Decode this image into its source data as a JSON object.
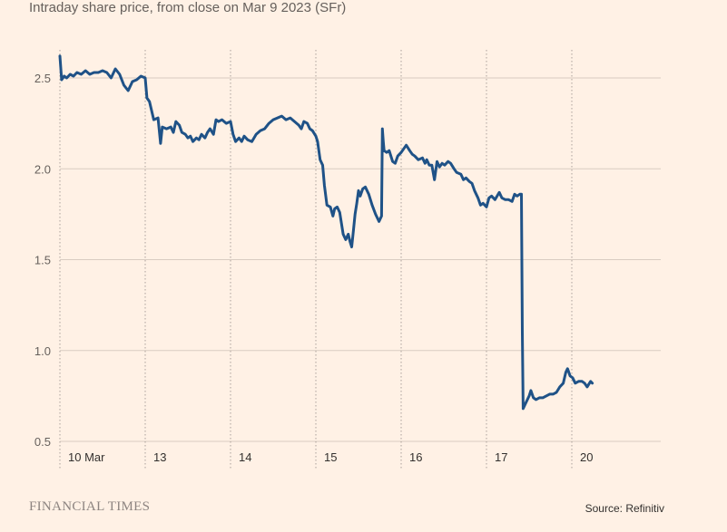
{
  "chart_data": {
    "type": "line",
    "subtitle": "Intraday share price, from close on Mar 9 2023 (SFr)",
    "x_categories": [
      "10 Mar",
      "13",
      "14",
      "15",
      "16",
      "17",
      "20"
    ],
    "ylim": [
      0.5,
      2.7
    ],
    "yticks": [
      0.5,
      1.0,
      1.5,
      2.0,
      2.5
    ],
    "ytick_labels": [
      "0.5",
      "1.0",
      "1.5",
      "2.0",
      "2.5"
    ],
    "grid": true,
    "source": "Source: Refinitiv",
    "brand": "FINANCIAL TIMES",
    "line_color": "#1F5287",
    "grid_color": "#D9CCC1",
    "series": [
      {
        "points": [
          [
            0.0,
            2.62
          ],
          [
            0.02,
            2.49
          ],
          [
            0.05,
            2.51
          ],
          [
            0.08,
            2.5
          ],
          [
            0.12,
            2.52
          ],
          [
            0.16,
            2.51
          ],
          [
            0.2,
            2.53
          ],
          [
            0.25,
            2.52
          ],
          [
            0.3,
            2.54
          ],
          [
            0.35,
            2.52
          ],
          [
            0.4,
            2.53
          ],
          [
            0.45,
            2.53
          ],
          [
            0.5,
            2.54
          ],
          [
            0.55,
            2.53
          ],
          [
            0.6,
            2.5
          ],
          [
            0.65,
            2.55
          ],
          [
            0.7,
            2.52
          ],
          [
            0.75,
            2.46
          ],
          [
            0.8,
            2.43
          ],
          [
            0.85,
            2.48
          ],
          [
            0.9,
            2.49
          ],
          [
            0.95,
            2.51
          ],
          [
            1.0,
            2.5
          ],
          [
            1.02,
            2.39
          ],
          [
            1.05,
            2.37
          ],
          [
            1.1,
            2.27
          ],
          [
            1.15,
            2.28
          ],
          [
            1.18,
            2.14
          ],
          [
            1.2,
            2.23
          ],
          [
            1.25,
            2.22
          ],
          [
            1.3,
            2.23
          ],
          [
            1.33,
            2.2
          ],
          [
            1.36,
            2.26
          ],
          [
            1.4,
            2.24
          ],
          [
            1.43,
            2.2
          ],
          [
            1.47,
            2.19
          ],
          [
            1.5,
            2.17
          ],
          [
            1.53,
            2.18
          ],
          [
            1.56,
            2.15
          ],
          [
            1.6,
            2.17
          ],
          [
            1.63,
            2.16
          ],
          [
            1.66,
            2.19
          ],
          [
            1.7,
            2.17
          ],
          [
            1.73,
            2.2
          ],
          [
            1.76,
            2.22
          ],
          [
            1.8,
            2.19
          ],
          [
            1.83,
            2.27
          ],
          [
            1.86,
            2.26
          ],
          [
            1.9,
            2.27
          ],
          [
            1.95,
            2.25
          ],
          [
            2.0,
            2.26
          ],
          [
            2.03,
            2.19
          ],
          [
            2.06,
            2.15
          ],
          [
            2.1,
            2.17
          ],
          [
            2.13,
            2.15
          ],
          [
            2.16,
            2.18
          ],
          [
            2.2,
            2.16
          ],
          [
            2.25,
            2.15
          ],
          [
            2.3,
            2.19
          ],
          [
            2.35,
            2.21
          ],
          [
            2.4,
            2.22
          ],
          [
            2.45,
            2.25
          ],
          [
            2.5,
            2.27
          ],
          [
            2.55,
            2.28
          ],
          [
            2.6,
            2.29
          ],
          [
            2.65,
            2.27
          ],
          [
            2.7,
            2.28
          ],
          [
            2.75,
            2.26
          ],
          [
            2.8,
            2.24
          ],
          [
            2.83,
            2.22
          ],
          [
            2.86,
            2.26
          ],
          [
            2.9,
            2.25
          ],
          [
            2.93,
            2.22
          ],
          [
            2.96,
            2.21
          ],
          [
            3.0,
            2.18
          ],
          [
            3.02,
            2.15
          ],
          [
            3.05,
            2.05
          ],
          [
            3.08,
            2.02
          ],
          [
            3.1,
            1.91
          ],
          [
            3.13,
            1.8
          ],
          [
            3.17,
            1.79
          ],
          [
            3.2,
            1.74
          ],
          [
            3.22,
            1.78
          ],
          [
            3.25,
            1.79
          ],
          [
            3.28,
            1.76
          ],
          [
            3.32,
            1.64
          ],
          [
            3.35,
            1.61
          ],
          [
            3.38,
            1.64
          ],
          [
            3.4,
            1.6
          ],
          [
            3.42,
            1.57
          ],
          [
            3.44,
            1.66
          ],
          [
            3.46,
            1.75
          ],
          [
            3.48,
            1.81
          ],
          [
            3.5,
            1.88
          ],
          [
            3.52,
            1.85
          ],
          [
            3.55,
            1.89
          ],
          [
            3.58,
            1.9
          ],
          [
            3.62,
            1.86
          ],
          [
            3.66,
            1.8
          ],
          [
            3.7,
            1.75
          ],
          [
            3.74,
            1.71
          ],
          [
            3.77,
            1.74
          ],
          [
            3.78,
            2.22
          ],
          [
            3.79,
            2.15
          ],
          [
            3.8,
            2.1
          ],
          [
            3.83,
            2.09
          ],
          [
            3.86,
            2.1
          ],
          [
            3.9,
            2.04
          ],
          [
            3.93,
            2.03
          ],
          [
            3.96,
            2.07
          ],
          [
            4.0,
            2.09
          ],
          [
            4.03,
            2.11
          ],
          [
            4.06,
            2.13
          ],
          [
            4.1,
            2.1
          ],
          [
            4.13,
            2.08
          ],
          [
            4.16,
            2.07
          ],
          [
            4.2,
            2.05
          ],
          [
            4.25,
            2.06
          ],
          [
            4.28,
            2.03
          ],
          [
            4.3,
            2.05
          ],
          [
            4.33,
            2.02
          ],
          [
            4.36,
            2.02
          ],
          [
            4.39,
            1.94
          ],
          [
            4.42,
            2.04
          ],
          [
            4.45,
            2.01
          ],
          [
            4.48,
            2.03
          ],
          [
            4.51,
            2.02
          ],
          [
            4.55,
            2.04
          ],
          [
            4.58,
            2.03
          ],
          [
            4.62,
            2.0
          ],
          [
            4.65,
            1.98
          ],
          [
            4.7,
            1.97
          ],
          [
            4.73,
            1.94
          ],
          [
            4.76,
            1.95
          ],
          [
            4.8,
            1.93
          ],
          [
            4.83,
            1.92
          ],
          [
            4.86,
            1.88
          ],
          [
            4.9,
            1.84
          ],
          [
            4.93,
            1.8
          ],
          [
            4.96,
            1.81
          ],
          [
            5.0,
            1.79
          ],
          [
            5.03,
            1.84
          ],
          [
            5.06,
            1.85
          ],
          [
            5.1,
            1.83
          ],
          [
            5.15,
            1.87
          ],
          [
            5.18,
            1.84
          ],
          [
            5.22,
            1.83
          ],
          [
            5.26,
            1.83
          ],
          [
            5.3,
            1.82
          ],
          [
            5.33,
            1.86
          ],
          [
            5.36,
            1.85
          ],
          [
            5.39,
            1.86
          ],
          [
            5.41,
            1.86
          ],
          [
            5.42,
            1.1
          ],
          [
            5.43,
            0.68
          ],
          [
            5.46,
            0.71
          ],
          [
            5.5,
            0.75
          ],
          [
            5.52,
            0.78
          ],
          [
            5.55,
            0.74
          ],
          [
            5.58,
            0.73
          ],
          [
            5.62,
            0.74
          ],
          [
            5.66,
            0.74
          ],
          [
            5.7,
            0.75
          ],
          [
            5.74,
            0.76
          ],
          [
            5.78,
            0.76
          ],
          [
            5.82,
            0.77
          ],
          [
            5.86,
            0.8
          ],
          [
            5.9,
            0.82
          ],
          [
            5.93,
            0.88
          ],
          [
            5.95,
            0.9
          ],
          [
            5.98,
            0.86
          ],
          [
            6.01,
            0.85
          ],
          [
            6.04,
            0.82
          ],
          [
            6.08,
            0.83
          ],
          [
            6.12,
            0.83
          ],
          [
            6.15,
            0.82
          ],
          [
            6.18,
            0.8
          ],
          [
            6.22,
            0.83
          ],
          [
            6.24,
            0.82
          ]
        ]
      }
    ]
  }
}
